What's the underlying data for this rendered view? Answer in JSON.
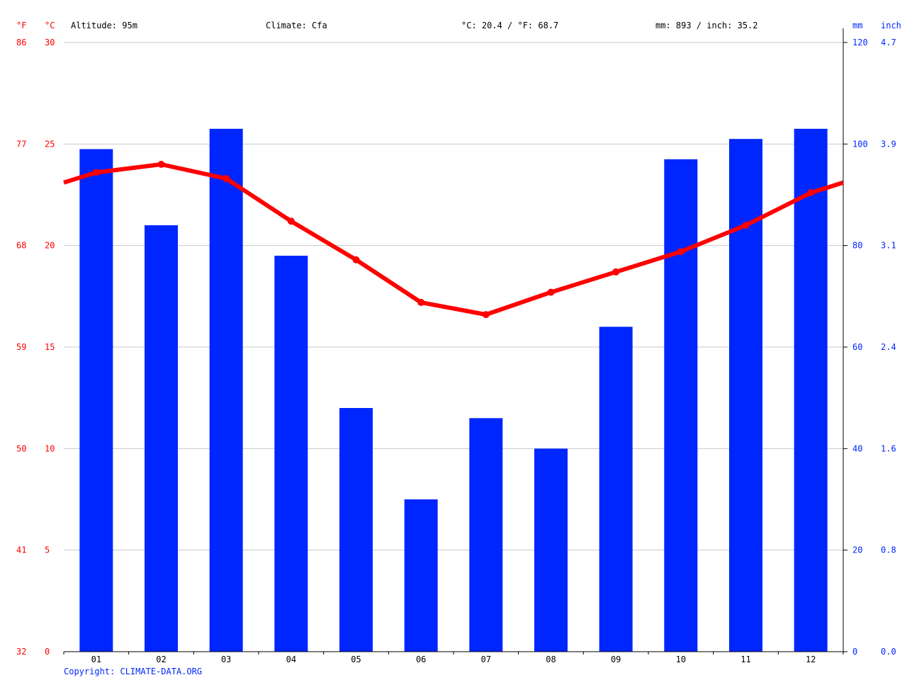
{
  "header": {
    "fahrenheit_unit": "°F",
    "celsius_unit": "°C",
    "altitude": "Altitude: 95m",
    "climate": "Climate: Cfa",
    "temperature_avg": "°C: 20.4 / °F: 68.7",
    "precipitation_total": "mm: 893 / inch: 35.2",
    "mm_unit": "mm",
    "inch_unit": "inch"
  },
  "copyright": "Copyright: CLIMATE-DATA.ORG",
  "colors": {
    "temperature": "#ff0000",
    "precipitation": "#0026ff",
    "grid": "#c8c8c8",
    "axis": "#000000",
    "text": "#000000"
  },
  "chart_data": {
    "type": "bar+line",
    "categories": [
      "01",
      "02",
      "03",
      "04",
      "05",
      "06",
      "07",
      "08",
      "09",
      "10",
      "11",
      "12"
    ],
    "series": [
      {
        "type": "bar",
        "axis": "right",
        "unit": "mm",
        "values": [
          99,
          84,
          103,
          78,
          48,
          30,
          46,
          40,
          64,
          97,
          101,
          103
        ]
      },
      {
        "type": "line",
        "axis": "left",
        "unit": "°C",
        "values": [
          23.6,
          24.0,
          23.3,
          21.2,
          19.3,
          17.2,
          16.6,
          17.7,
          18.7,
          19.7,
          21.0,
          22.6
        ]
      }
    ],
    "axes": {
      "celsius": {
        "range": [
          0,
          30
        ],
        "ticks": [
          "0",
          "5",
          "10",
          "15",
          "20",
          "25",
          "30"
        ]
      },
      "fahrenheit": {
        "ticks": [
          "32",
          "41",
          "50",
          "59",
          "68",
          "77",
          "86"
        ]
      },
      "mm": {
        "range": [
          0,
          120
        ],
        "ticks": [
          "0",
          "20",
          "40",
          "60",
          "80",
          "100",
          "120"
        ]
      },
      "inch": {
        "ticks": [
          "0.0",
          "0.8",
          "1.6",
          "2.4",
          "3.1",
          "3.9",
          "4.7"
        ]
      }
    },
    "grid": true
  }
}
